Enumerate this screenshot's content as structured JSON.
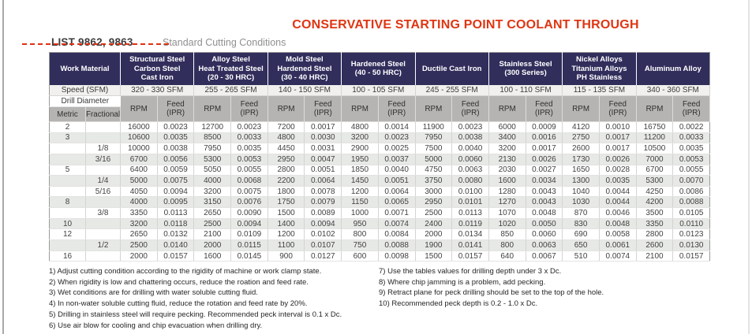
{
  "annotation": {
    "title": "CONSERVATIVE STARTING POINT COOLANT THROUGH",
    "color": "#df3512"
  },
  "heading": {
    "list_label": "LIST 9862, 9863",
    "subtitle": "Standard Cutting Conditions"
  },
  "table": {
    "corner_label": "Work Material",
    "speed_label": "Speed (SFM)",
    "drill_diameter_label": "Drill Diameter",
    "metric_label": "Metric",
    "fractional_label": "Fractional",
    "rpm_label": "RPM",
    "feed_label": "Feed",
    "feed_unit_label": "(IPR)",
    "header_bg": "#312e5c",
    "materials": [
      {
        "lines": [
          "Structural Steel",
          "Carbon Steel",
          "Cast Iron"
        ],
        "speed": "320 - 330 SFM"
      },
      {
        "lines": [
          "Alloy Steel",
          "Heat Treated Steel",
          "(20 - 30 HRC)"
        ],
        "speed": "255 - 265 SFM"
      },
      {
        "lines": [
          "Mold Steel",
          "Hardened Steel",
          "(30 - 40 HRC)"
        ],
        "speed": "140 - 150 SFM"
      },
      {
        "lines": [
          "Hardened Steel",
          "(40 - 50 HRC)"
        ],
        "speed": "100 - 105 SFM"
      },
      {
        "lines": [
          "Ductile Cast Iron"
        ],
        "speed": "245 - 255 SFM"
      },
      {
        "lines": [
          "Stainless Steel",
          "(300 Series)"
        ],
        "speed": "100 - 110 SFM"
      },
      {
        "lines": [
          "Nickel Alloys",
          "Titanium Alloys",
          "PH Stainless"
        ],
        "speed": "115 - 135 SFM"
      },
      {
        "lines": [
          "Aluminum Alloy"
        ],
        "speed": "340 - 360 SFM"
      }
    ],
    "rows": [
      {
        "metric": "2",
        "fractional": "",
        "data": [
          "16000",
          "0.0023",
          "12700",
          "0.0023",
          "7200",
          "0.0017",
          "4800",
          "0.0014",
          "11900",
          "0.0023",
          "6000",
          "0.0009",
          "4120",
          "0.0010",
          "16750",
          "0.0022"
        ]
      },
      {
        "metric": "3",
        "fractional": "",
        "data": [
          "10600",
          "0.0035",
          "8500",
          "0.0033",
          "4800",
          "0.0030",
          "3200",
          "0.0023",
          "7950",
          "0.0038",
          "3400",
          "0.0016",
          "2750",
          "0.0017",
          "11200",
          "0.0033"
        ]
      },
      {
        "metric": "",
        "fractional": "1/8",
        "data": [
          "10000",
          "0.0038",
          "7950",
          "0.0035",
          "4450",
          "0.0031",
          "2900",
          "0.0025",
          "7500",
          "0.0040",
          "3200",
          "0.0017",
          "2600",
          "0.0017",
          "10500",
          "0.0035"
        ]
      },
      {
        "metric": "",
        "fractional": "3/16",
        "data": [
          "6700",
          "0.0056",
          "5300",
          "0.0053",
          "2950",
          "0.0047",
          "1950",
          "0.0037",
          "5000",
          "0.0060",
          "2130",
          "0.0026",
          "1730",
          "0.0026",
          "7000",
          "0.0053"
        ]
      },
      {
        "metric": "5",
        "fractional": "",
        "data": [
          "6400",
          "0.0059",
          "5050",
          "0.0055",
          "2800",
          "0.0051",
          "1850",
          "0.0040",
          "4750",
          "0.0063",
          "2030",
          "0.0027",
          "1650",
          "0.0028",
          "6700",
          "0.0055"
        ]
      },
      {
        "metric": "",
        "fractional": "1/4",
        "data": [
          "5000",
          "0.0075",
          "4000",
          "0.0068",
          "2200",
          "0.0064",
          "1450",
          "0.0051",
          "3750",
          "0.0080",
          "1600",
          "0.0034",
          "1300",
          "0.0035",
          "5300",
          "0.0070"
        ]
      },
      {
        "metric": "",
        "fractional": "5/16",
        "data": [
          "4050",
          "0.0094",
          "3200",
          "0.0075",
          "1800",
          "0.0078",
          "1200",
          "0.0064",
          "3000",
          "0.0100",
          "1280",
          "0.0043",
          "1040",
          "0.0044",
          "4250",
          "0.0086"
        ]
      },
      {
        "metric": "8",
        "fractional": "",
        "data": [
          "4000",
          "0.0095",
          "3150",
          "0.0076",
          "1750",
          "0.0079",
          "1150",
          "0.0065",
          "2950",
          "0.0101",
          "1270",
          "0.0043",
          "1030",
          "0.0044",
          "4200",
          "0.0088"
        ]
      },
      {
        "metric": "",
        "fractional": "3/8",
        "data": [
          "3350",
          "0.0113",
          "2650",
          "0.0090",
          "1500",
          "0.0089",
          "1000",
          "0.0071",
          "2500",
          "0.0113",
          "1070",
          "0.0048",
          "870",
          "0.0046",
          "3500",
          "0.0105"
        ]
      },
      {
        "metric": "10",
        "fractional": "",
        "data": [
          "3200",
          "0.0118",
          "2500",
          "0.0094",
          "1400",
          "0.0094",
          "950",
          "0.0074",
          "2400",
          "0.0119",
          "1020",
          "0.0050",
          "830",
          "0.0048",
          "3350",
          "0.0110"
        ]
      },
      {
        "metric": "12",
        "fractional": "",
        "data": [
          "2650",
          "0.0132",
          "2100",
          "0.0109",
          "1200",
          "0.0102",
          "800",
          "0.0084",
          "2000",
          "0.0134",
          "850",
          "0.0060",
          "690",
          "0.0058",
          "2800",
          "0.0123"
        ]
      },
      {
        "metric": "",
        "fractional": "1/2",
        "data": [
          "2500",
          "0.0140",
          "2000",
          "0.0115",
          "1100",
          "0.0107",
          "750",
          "0.0088",
          "1900",
          "0.0141",
          "800",
          "0.0063",
          "650",
          "0.0061",
          "2600",
          "0.0130"
        ]
      },
      {
        "metric": "16",
        "fractional": "",
        "data": [
          "2000",
          "0.0157",
          "1600",
          "0.0145",
          "900",
          "0.0127",
          "600",
          "0.0098",
          "1500",
          "0.0157",
          "640",
          "0.0067",
          "510",
          "0.0074",
          "2100",
          "0.0157"
        ]
      }
    ]
  },
  "footnotes": {
    "left": [
      "1) Adjust cutting condition according to the rigidity of machine or work clamp state.",
      "2) When rigidity is low and chattering occurs, reduce the roation and feed rate.",
      "3) Wet conditions are for drilling with water soluble cutting fluid.",
      "4) In non-water soluble cutting fluid, reduce the rotation and feed rate by 20%.",
      "5) Drilling in stainless steel will require pecking. Recommended peck interval is 0.1 x Dc.",
      "6) Use air blow for cooling and chip evacuation when drilling dry."
    ],
    "right": [
      "7) Use the tables values for drilling depth under 3 x Dc.",
      "8) Where chip jamming is a problem, add pecking.",
      "9) Retract plane for peck drilling should be set to the top of the hole.",
      "10) Recommended peck depth is 0.2 - 1.0 x Dc."
    ]
  }
}
